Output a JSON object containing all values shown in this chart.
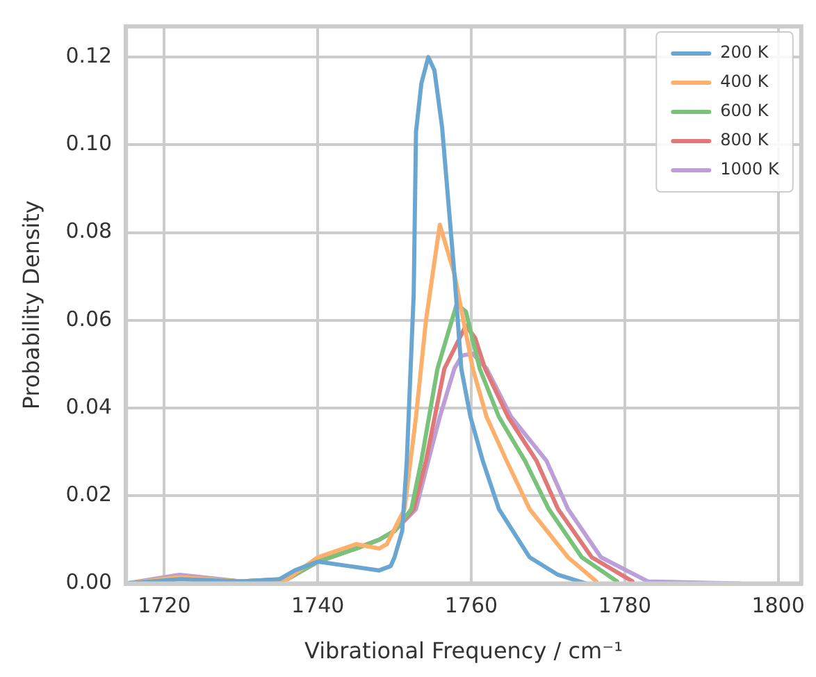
{
  "chart_data": {
    "type": "line",
    "xlabel": "Vibrational Frequency / cm⁻¹",
    "ylabel": "Probability Density",
    "xlim": [
      1715,
      1803
    ],
    "ylim": [
      0,
      0.127
    ],
    "xticks": [
      1720,
      1740,
      1760,
      1780,
      1800
    ],
    "yticks": [
      {
        "value": 0,
        "label": "0.00"
      },
      {
        "value": 0.02,
        "label": "0.02"
      },
      {
        "value": 0.04,
        "label": "0.04"
      },
      {
        "value": 0.06,
        "label": "0.06"
      },
      {
        "value": 0.08,
        "label": "0.08"
      },
      {
        "value": 0.1,
        "label": "0.10"
      },
      {
        "value": 0.12,
        "label": "0.12"
      }
    ],
    "grid": true,
    "legend": "top right",
    "marker": "none",
    "line_style": "solid",
    "series": [
      {
        "name": "200 K",
        "color": "#6aa6d2",
        "x": [
          1715,
          1722,
          1730,
          1735,
          1737,
          1740,
          1744,
          1748,
          1749.5,
          1750,
          1751,
          1751.6,
          1752.5,
          1752.8,
          1753.5,
          1754.4,
          1755.2,
          1756.2,
          1757.8,
          1758.7,
          1759.9,
          1761.5,
          1763.6,
          1767.6,
          1771.3,
          1775
        ],
        "values": [
          0,
          0.001,
          0.0005,
          0.001,
          0.003,
          0.005,
          0.004,
          0.003,
          0.004,
          0.006,
          0.012,
          0.028,
          0.066,
          0.103,
          0.114,
          0.12,
          0.117,
          0.104,
          0.0706,
          0.049,
          0.038,
          0.028,
          0.017,
          0.006,
          0.002,
          0
        ]
      },
      {
        "name": "400 K",
        "color": "#fdb06b",
        "x": [
          1715,
          1722,
          1730,
          1736,
          1740,
          1745,
          1748,
          1749,
          1751.3,
          1752.8,
          1754.1,
          1755.9,
          1757.8,
          1760.2,
          1762,
          1764.6,
          1767.6,
          1772.6,
          1776.3
        ],
        "values": [
          0,
          0.0015,
          0.0005,
          0.001,
          0.006,
          0.009,
          0.008,
          0.009,
          0.017,
          0.038,
          0.06,
          0.0818,
          0.0706,
          0.049,
          0.038,
          0.028,
          0.017,
          0.006,
          0.0005
        ]
      },
      {
        "name": "600 K",
        "color": "#78c27a",
        "x": [
          1715,
          1722,
          1730,
          1736,
          1740,
          1745,
          1748,
          1750,
          1752.2,
          1753.5,
          1755.6,
          1758.1,
          1759.3,
          1761.1,
          1763.6,
          1767,
          1770.1,
          1774.4,
          1779
        ],
        "values": [
          0,
          0.0015,
          0.0005,
          0.001,
          0.005,
          0.008,
          0.01,
          0.012,
          0.017,
          0.028,
          0.049,
          0.0637,
          0.062,
          0.049,
          0.038,
          0.028,
          0.017,
          0.006,
          0.0005
        ]
      },
      {
        "name": "800 K",
        "color": "#e0787a",
        "x": [
          1715,
          1722,
          1730,
          1736,
          1740,
          1745,
          1748,
          1750,
          1752.5,
          1754.1,
          1756.5,
          1759.3,
          1760.5,
          1761.8,
          1764.8,
          1768.5,
          1771.3,
          1775.7,
          1781
        ],
        "values": [
          0,
          0.0015,
          0.0005,
          0.001,
          0.005,
          0.008,
          0.01,
          0.012,
          0.017,
          0.028,
          0.049,
          0.0588,
          0.056,
          0.049,
          0.038,
          0.028,
          0.017,
          0.006,
          0.0005
        ]
      },
      {
        "name": "1000 K",
        "color": "#bb9fd6",
        "x": [
          1715,
          1722,
          1730,
          1736,
          1740,
          1745,
          1748,
          1750,
          1752.8,
          1754.4,
          1755.9,
          1757.8,
          1758.8,
          1760.2,
          1762,
          1765.2,
          1769.8,
          1772.6,
          1776.9,
          1783,
          1795
        ],
        "values": [
          0,
          0.002,
          0.0005,
          0.001,
          0.005,
          0.008,
          0.01,
          0.012,
          0.017,
          0.028,
          0.038,
          0.049,
          0.052,
          0.0524,
          0.049,
          0.038,
          0.028,
          0.017,
          0.006,
          0.0005,
          0
        ]
      }
    ]
  }
}
